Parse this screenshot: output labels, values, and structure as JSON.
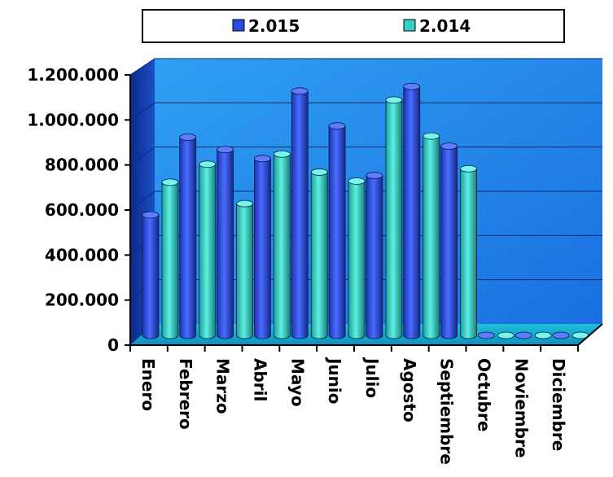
{
  "chart_data": {
    "type": "bar",
    "categories": [
      "Enero",
      "Febrero",
      "Marzo",
      "Abril",
      "Mayo",
      "Junio",
      "Julio",
      "Agosto",
      "Septiembre",
      "Octubre",
      "Noviembre",
      "Diciembre"
    ],
    "series": [
      {
        "name": "2.015",
        "color": "#2b4be0",
        "values": [
          535000,
          880000,
          825000,
          785000,
          1085000,
          930000,
          710000,
          1105000,
          840000,
          0,
          0,
          0
        ]
      },
      {
        "name": "2.014",
        "color": "#33d1c4",
        "values": [
          680000,
          760000,
          585000,
          805000,
          725000,
          685000,
          1045000,
          885000,
          740000,
          0,
          0,
          0
        ]
      }
    ],
    "yticks": [
      "0",
      "200.000",
      "400.000",
      "600.000",
      "800.000",
      "1.000.000",
      "1.200.000"
    ],
    "ylim": [
      0,
      1200000
    ],
    "grid": true,
    "legend": "top"
  }
}
